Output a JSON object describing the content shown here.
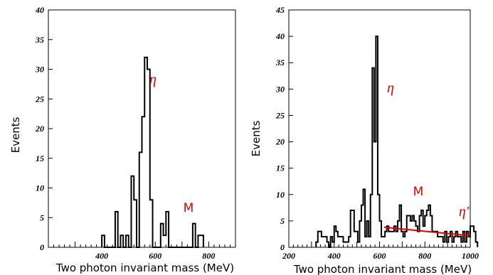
{
  "chart_data": [
    {
      "type": "histogram",
      "xlabel": "Two photon invariant mass (MeV)",
      "ylabel": "Events",
      "xlim": [
        200,
        900
      ],
      "ylim": [
        0,
        40
      ],
      "xticks": [
        400,
        600,
        800
      ],
      "yticks": [
        0,
        5,
        10,
        15,
        20,
        25,
        30,
        35,
        40
      ],
      "bin_width": 10,
      "bin_start": 400,
      "values": [
        2,
        0,
        0,
        0,
        0,
        6,
        0,
        2,
        0,
        2,
        0,
        12,
        8,
        0,
        16,
        22,
        32,
        30,
        8,
        0,
        0,
        0,
        4,
        2,
        6,
        0,
        0,
        0,
        0,
        0,
        0,
        0,
        0,
        0,
        4,
        0,
        2,
        2
      ],
      "annotations": [
        {
          "text": "η",
          "x": 630,
          "y": 27
        },
        {
          "text": "M",
          "x": 750,
          "y": 4.5
        }
      ]
    },
    {
      "type": "histogram",
      "xlabel": "Two photon invariant mass (MeV)",
      "ylabel": "Events",
      "xlim": [
        200,
        1000
      ],
      "ylim": [
        0,
        45
      ],
      "xticks": [
        200,
        400,
        600,
        800,
        1000
      ],
      "yticks": [
        0,
        5,
        10,
        15,
        20,
        25,
        30,
        35,
        40,
        45
      ],
      "bin_width": 8,
      "bin_start": 320,
      "values": [
        1,
        3,
        3,
        2,
        2,
        2,
        1,
        0,
        2,
        1,
        4,
        3,
        2,
        2,
        2,
        1,
        1,
        1,
        2,
        7,
        7,
        3,
        3,
        1,
        5,
        8,
        11,
        2,
        5,
        2,
        10,
        34,
        20,
        40,
        10,
        5,
        2,
        2,
        3,
        4,
        3,
        3,
        3,
        4,
        3,
        5,
        8,
        3,
        2,
        3,
        6,
        6,
        5,
        6,
        5,
        4,
        3,
        6,
        7,
        4,
        6,
        7,
        8,
        6,
        3,
        3,
        3,
        2,
        2,
        2,
        1,
        3,
        1,
        2,
        3,
        1,
        2,
        3,
        2,
        2,
        1,
        3,
        1,
        3,
        2,
        4,
        4,
        3,
        1
      ],
      "background_fit": {
        "x": [
          620,
          1000
        ],
        "y": [
          3.8,
          2.2
        ]
      },
      "annotations": [
        {
          "text": "η",
          "x": 600,
          "y": 32
        },
        {
          "text": "M",
          "x": 770,
          "y": 11
        },
        {
          "text": "η'",
          "x": 965,
          "y": 6
        }
      ]
    }
  ]
}
